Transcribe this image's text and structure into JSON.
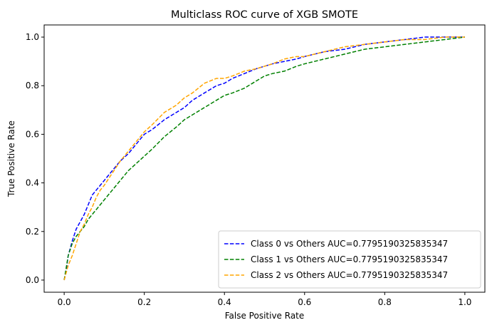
{
  "chart_data": {
    "type": "line",
    "title": "Multiclass ROC curve of XGB SMOTE",
    "xlabel": "False Positive Rate",
    "ylabel": "True Positive Rate",
    "xlim": [
      -0.05,
      1.05
    ],
    "ylim": [
      -0.05,
      1.05
    ],
    "xticks": [
      0.0,
      0.2,
      0.4,
      0.6,
      0.8,
      1.0
    ],
    "yticks": [
      0.0,
      0.2,
      0.4,
      0.6,
      0.8,
      1.0
    ],
    "xtick_labels": [
      "0.0",
      "0.2",
      "0.4",
      "0.6",
      "0.8",
      "1.0"
    ],
    "ytick_labels": [
      "0.0",
      "0.2",
      "0.4",
      "0.6",
      "0.8",
      "1.0"
    ],
    "grid": false,
    "legend_position": "lower right",
    "series": [
      {
        "name": "Class 0 vs Others AUC=0.7795190325835347",
        "color": "#0000ff",
        "style": "dashed",
        "x": [
          0.0,
          0.005,
          0.01,
          0.02,
          0.03,
          0.04,
          0.05,
          0.06,
          0.07,
          0.08,
          0.09,
          0.1,
          0.12,
          0.14,
          0.16,
          0.18,
          0.2,
          0.22,
          0.25,
          0.28,
          0.3,
          0.32,
          0.35,
          0.38,
          0.4,
          0.42,
          0.45,
          0.48,
          0.5,
          0.52,
          0.55,
          0.58,
          0.6,
          0.65,
          0.7,
          0.75,
          0.8,
          0.85,
          0.9,
          0.95,
          1.0
        ],
        "y": [
          0.0,
          0.04,
          0.1,
          0.16,
          0.21,
          0.24,
          0.27,
          0.31,
          0.35,
          0.37,
          0.39,
          0.41,
          0.45,
          0.49,
          0.52,
          0.56,
          0.6,
          0.62,
          0.66,
          0.69,
          0.71,
          0.74,
          0.77,
          0.8,
          0.81,
          0.83,
          0.85,
          0.87,
          0.88,
          0.89,
          0.9,
          0.91,
          0.92,
          0.94,
          0.95,
          0.97,
          0.98,
          0.99,
          1.0,
          1.0,
          1.0
        ]
      },
      {
        "name": "Class 1 vs Others AUC=0.7795190325835347",
        "color": "#008000",
        "style": "dashed",
        "x": [
          0.0,
          0.005,
          0.01,
          0.02,
          0.03,
          0.04,
          0.05,
          0.06,
          0.07,
          0.08,
          0.09,
          0.1,
          0.12,
          0.14,
          0.16,
          0.18,
          0.2,
          0.22,
          0.25,
          0.28,
          0.3,
          0.32,
          0.35,
          0.38,
          0.4,
          0.42,
          0.45,
          0.48,
          0.5,
          0.52,
          0.55,
          0.58,
          0.6,
          0.65,
          0.7,
          0.75,
          0.8,
          0.85,
          0.9,
          0.95,
          1.0
        ],
        "y": [
          0.0,
          0.05,
          0.1,
          0.15,
          0.18,
          0.2,
          0.22,
          0.25,
          0.27,
          0.29,
          0.31,
          0.33,
          0.37,
          0.41,
          0.45,
          0.48,
          0.51,
          0.54,
          0.59,
          0.63,
          0.66,
          0.68,
          0.71,
          0.74,
          0.76,
          0.77,
          0.79,
          0.82,
          0.84,
          0.85,
          0.86,
          0.88,
          0.89,
          0.91,
          0.93,
          0.95,
          0.96,
          0.97,
          0.98,
          0.99,
          1.0
        ]
      },
      {
        "name": "Class 2 vs Others AUC=0.7795190325835347",
        "color": "#ffa500",
        "style": "dashed",
        "x": [
          0.0,
          0.005,
          0.01,
          0.02,
          0.03,
          0.04,
          0.05,
          0.06,
          0.07,
          0.08,
          0.09,
          0.1,
          0.12,
          0.14,
          0.16,
          0.18,
          0.2,
          0.22,
          0.25,
          0.28,
          0.3,
          0.32,
          0.35,
          0.38,
          0.4,
          0.42,
          0.45,
          0.48,
          0.5,
          0.52,
          0.55,
          0.58,
          0.6,
          0.65,
          0.7,
          0.75,
          0.8,
          0.85,
          0.9,
          0.95,
          1.0
        ],
        "y": [
          0.0,
          0.03,
          0.06,
          0.1,
          0.15,
          0.2,
          0.23,
          0.27,
          0.3,
          0.34,
          0.37,
          0.39,
          0.44,
          0.49,
          0.53,
          0.57,
          0.61,
          0.64,
          0.69,
          0.72,
          0.75,
          0.77,
          0.81,
          0.83,
          0.83,
          0.84,
          0.86,
          0.87,
          0.88,
          0.89,
          0.91,
          0.92,
          0.92,
          0.94,
          0.96,
          0.97,
          0.98,
          0.99,
          0.99,
          1.0,
          1.0
        ]
      }
    ]
  }
}
